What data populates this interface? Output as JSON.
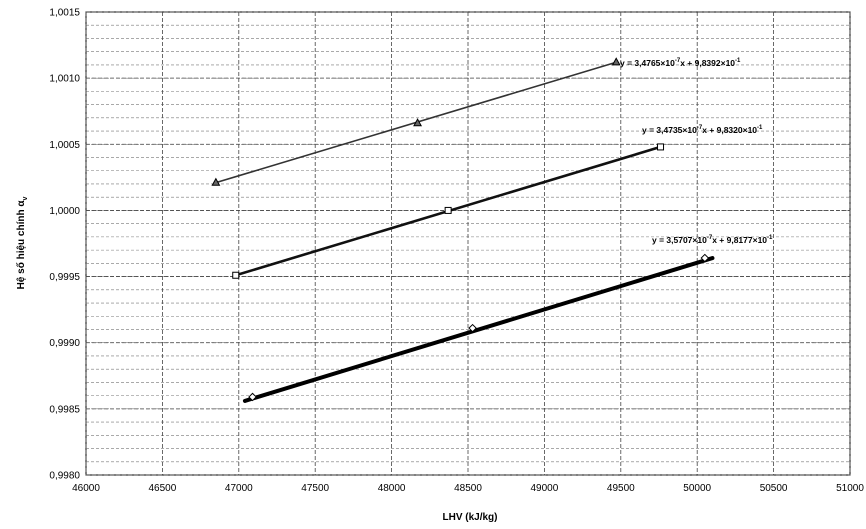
{
  "chart_data": {
    "type": "line",
    "title": "",
    "xlabel": "LHV (kJ/kg)",
    "ylabel": "Hệ số hiệu chính α",
    "ylabel_subscript": "v",
    "xlim": [
      46000,
      51000
    ],
    "ylim": [
      0.998,
      1.0015
    ],
    "x_ticks": [
      46000,
      46500,
      47000,
      47500,
      48000,
      48500,
      49000,
      49500,
      50000,
      50500,
      51000
    ],
    "x_tick_labels": [
      "46000",
      "46500",
      "47000",
      "47500",
      "48000",
      "48500",
      "49000",
      "49500",
      "50000",
      "50500",
      "51000"
    ],
    "y_ticks": [
      0.998,
      0.9985,
      0.999,
      0.9995,
      1.0,
      1.0005,
      1.001,
      1.0015
    ],
    "y_tick_labels": [
      "0,9980",
      "0,9985",
      "0,9990",
      "0,9995",
      "1,0000",
      "1,0005",
      "1,0010",
      "1,0015"
    ],
    "y_minor_step": 0.0001,
    "grid": true,
    "grid_style": "dashed",
    "series": [
      {
        "marker": "triangle",
        "color": "#333333",
        "x": [
          46850,
          48170,
          49470
        ],
        "y": [
          1.00021,
          1.00066,
          1.00112
        ],
        "line_x": [
          46850,
          49470
        ],
        "line_y": [
          1.00021,
          1.00112
        ],
        "equation": {
          "prefix": "y = 3,4765×10",
          "exp1": "-7",
          "mid": "x + 9,8392×10",
          "exp2": "-1"
        }
      },
      {
        "marker": "square",
        "color": "#111111",
        "x": [
          46980,
          48370,
          49760
        ],
        "y": [
          0.99951,
          1.0,
          1.00048
        ],
        "line_x": [
          46980,
          49760
        ],
        "line_y": [
          0.99951,
          1.00048
        ],
        "equation": {
          "prefix": "y = 3,4735×10",
          "exp1": "-7",
          "mid": "x + 9,8320×10",
          "exp2": "-1"
        }
      },
      {
        "marker": "diamond",
        "color": "#000000",
        "x": [
          47090,
          48530,
          50050
        ],
        "y": [
          0.99859,
          0.99911,
          0.99964
        ],
        "line_x": [
          47040,
          50100
        ],
        "line_y": [
          0.99856,
          0.99964
        ],
        "equation": {
          "prefix": "y = 3,5707×10",
          "exp1": "-7",
          "mid": "x + 9,8177×10",
          "exp2": "-1"
        }
      }
    ]
  }
}
